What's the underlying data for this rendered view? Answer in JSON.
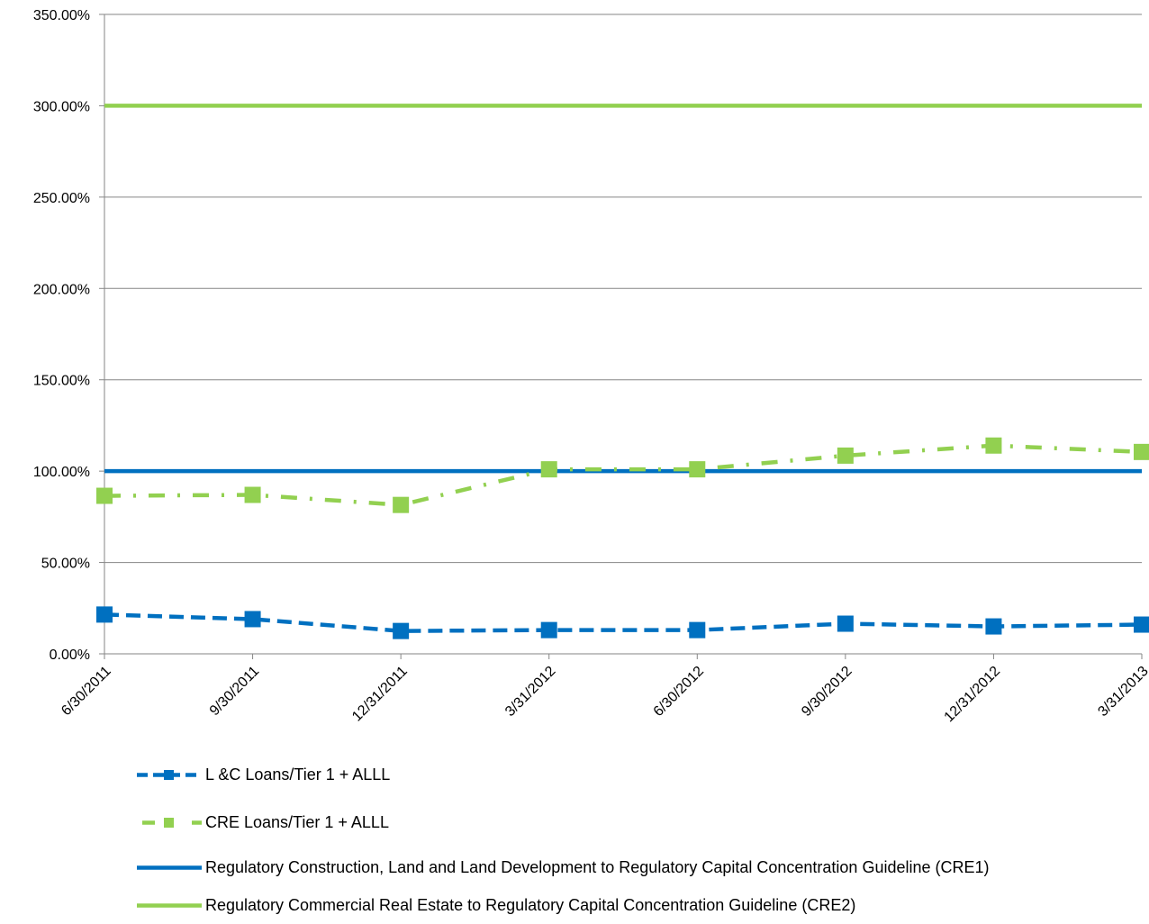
{
  "chart_data": {
    "type": "line",
    "categories": [
      "6/30/2011",
      "9/30/2011",
      "12/31/2011",
      "3/31/2012",
      "6/30/2012",
      "9/30/2012",
      "12/31/2012",
      "3/31/2013"
    ],
    "y_tick_labels": [
      "0.00%",
      "50.00%",
      "100.00%",
      "150.00%",
      "200.00%",
      "250.00%",
      "300.00%",
      "350.00%"
    ],
    "ylim": [
      0,
      350
    ],
    "y_unit": "%",
    "grid": true,
    "legend_position": "bottom",
    "series": [
      {
        "name": "L &C Loans/Tier 1 + ALLL",
        "values": [
          21.5,
          19,
          12.5,
          13,
          13,
          16.5,
          15,
          16
        ],
        "color": "#0070C0",
        "style": "dashed",
        "marker": "square"
      },
      {
        "name": "CRE Loans/Tier 1 + ALLL",
        "values": [
          86.5,
          87,
          81.5,
          101,
          101,
          108.5,
          114,
          110.5
        ],
        "color": "#92D050",
        "style": "dash-dot",
        "marker": "square"
      },
      {
        "name": "Regulatory Construction, Land and Land Development to Regulatory Capital Concentration Guideline (CRE1)",
        "values": [
          100,
          100,
          100,
          100,
          100,
          100,
          100,
          100
        ],
        "color": "#0070C0",
        "style": "solid",
        "marker": "none"
      },
      {
        "name": "Regulatory Commercial Real Estate to Regulatory Capital Concentration Guideline (CRE2)",
        "values": [
          300,
          300,
          300,
          300,
          300,
          300,
          300,
          300
        ],
        "color": "#92D050",
        "style": "solid",
        "marker": "none"
      }
    ]
  }
}
